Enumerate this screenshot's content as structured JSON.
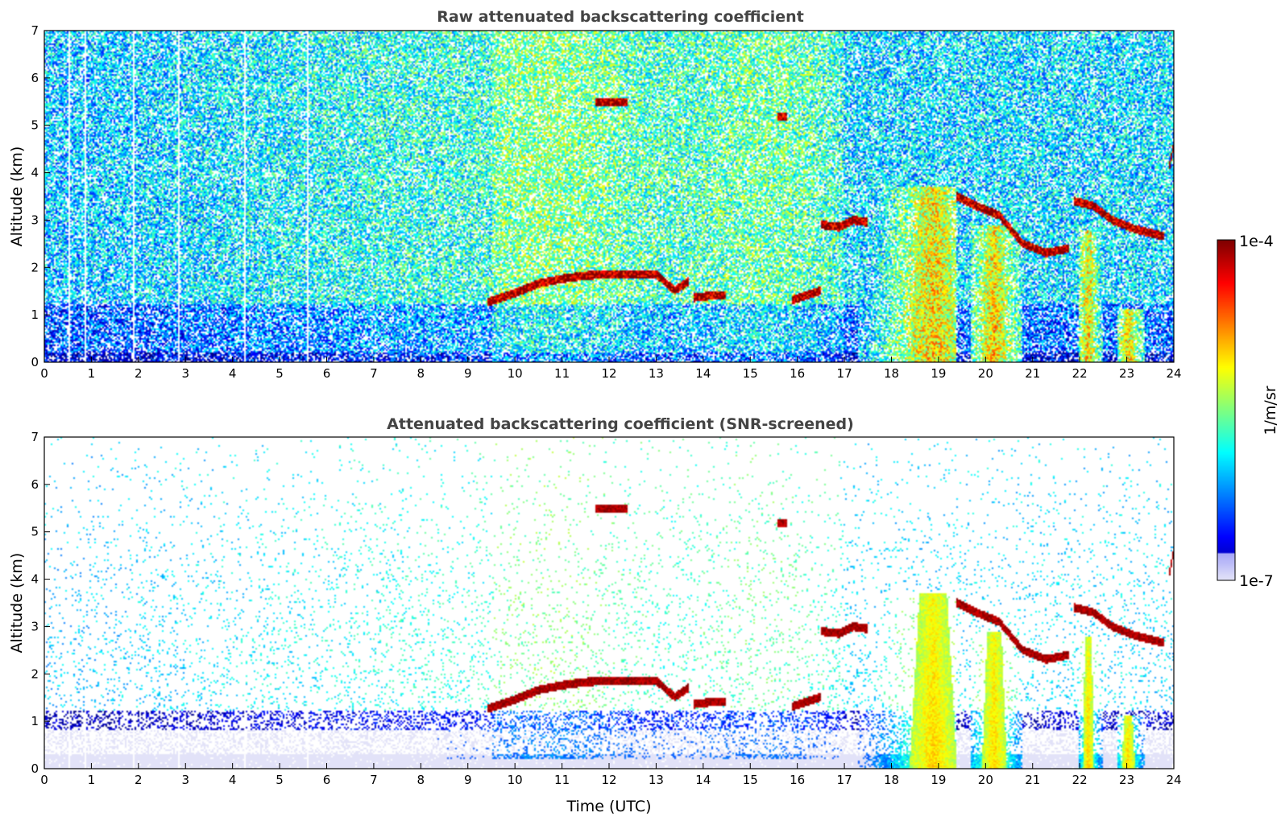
{
  "chart_data": [
    {
      "type": "heatmap",
      "title": "Raw attenuated backscattering coefficient",
      "xlabel": "",
      "ylabel": "Altitude (km)",
      "xlim": [
        0,
        24
      ],
      "ylim": [
        0,
        7
      ],
      "x_ticks": [
        "0",
        "1",
        "2",
        "3",
        "4",
        "5",
        "6",
        "7",
        "8",
        "9",
        "10",
        "11",
        "12",
        "13",
        "14",
        "15",
        "16",
        "17",
        "18",
        "19",
        "20",
        "21",
        "22",
        "23",
        "24"
      ],
      "y_ticks": [
        "0",
        "1",
        "2",
        "3",
        "4",
        "5",
        "6",
        "7"
      ],
      "screened": false,
      "cloud_layers": [
        {
          "t": [
            9.4,
            10.0,
            10.5,
            11.0,
            11.5,
            12.0,
            12.5,
            13.0,
            13.4,
            13.7
          ],
          "alt": [
            1.25,
            1.45,
            1.65,
            1.75,
            1.82,
            1.85,
            1.85,
            1.85,
            1.5,
            1.7
          ]
        },
        {
          "t": [
            13.8,
            14.2,
            14.5
          ],
          "alt": [
            1.35,
            1.4,
            1.4
          ]
        },
        {
          "t": [
            15.9,
            16.2,
            16.5
          ],
          "alt": [
            1.3,
            1.4,
            1.5
          ]
        },
        {
          "t": [
            16.5,
            16.9,
            17.2,
            17.5
          ],
          "alt": [
            2.9,
            2.85,
            3.0,
            2.95
          ]
        },
        {
          "t": [
            19.4,
            19.8,
            20.3,
            20.8,
            21.3,
            21.8
          ],
          "alt": [
            3.5,
            3.3,
            3.1,
            2.5,
            2.3,
            2.4
          ]
        },
        {
          "t": [
            21.9,
            22.3,
            22.7,
            23.2,
            23.8
          ],
          "alt": [
            3.4,
            3.3,
            3.0,
            2.8,
            2.65
          ]
        },
        {
          "t": [
            23.9,
            24.0
          ],
          "alt": [
            4.0,
            4.5
          ]
        },
        {
          "t": [
            11.7,
            12.4
          ],
          "alt": [
            5.5,
            5.5
          ]
        },
        {
          "t": [
            15.6,
            15.8
          ],
          "alt": [
            5.2,
            5.2
          ]
        }
      ],
      "precip_columns": [
        {
          "t0": 17.3,
          "t1": 19.4,
          "top": 3.7,
          "core": 18.9
        },
        {
          "t0": 19.7,
          "t1": 20.8,
          "top": 2.9,
          "core": 20.2
        },
        {
          "t0": 22.0,
          "t1": 22.5,
          "top": 2.8,
          "core": 22.2
        },
        {
          "t0": 22.8,
          "t1": 23.4,
          "top": 1.1,
          "core": 23.05
        }
      ]
    },
    {
      "type": "heatmap",
      "title": "Attenuated backscattering coefficient (SNR-screened)",
      "xlabel": "Time (UTC)",
      "ylabel": "Altitude (km)",
      "xlim": [
        0,
        24
      ],
      "ylim": [
        0,
        7
      ],
      "x_ticks": [
        "0",
        "1",
        "2",
        "3",
        "4",
        "5",
        "6",
        "7",
        "8",
        "9",
        "10",
        "11",
        "12",
        "13",
        "14",
        "15",
        "16",
        "17",
        "18",
        "19",
        "20",
        "21",
        "22",
        "23",
        "24"
      ],
      "y_ticks": [
        "0",
        "1",
        "2",
        "3",
        "4",
        "5",
        "6",
        "7"
      ],
      "screened": true
    }
  ],
  "colorbar": {
    "label": "1/m/sr",
    "max_label": "1e-4",
    "min_label": "1e-7",
    "scale": "log",
    "colormap": "jet",
    "low_end_color": "#e6e6f8"
  }
}
